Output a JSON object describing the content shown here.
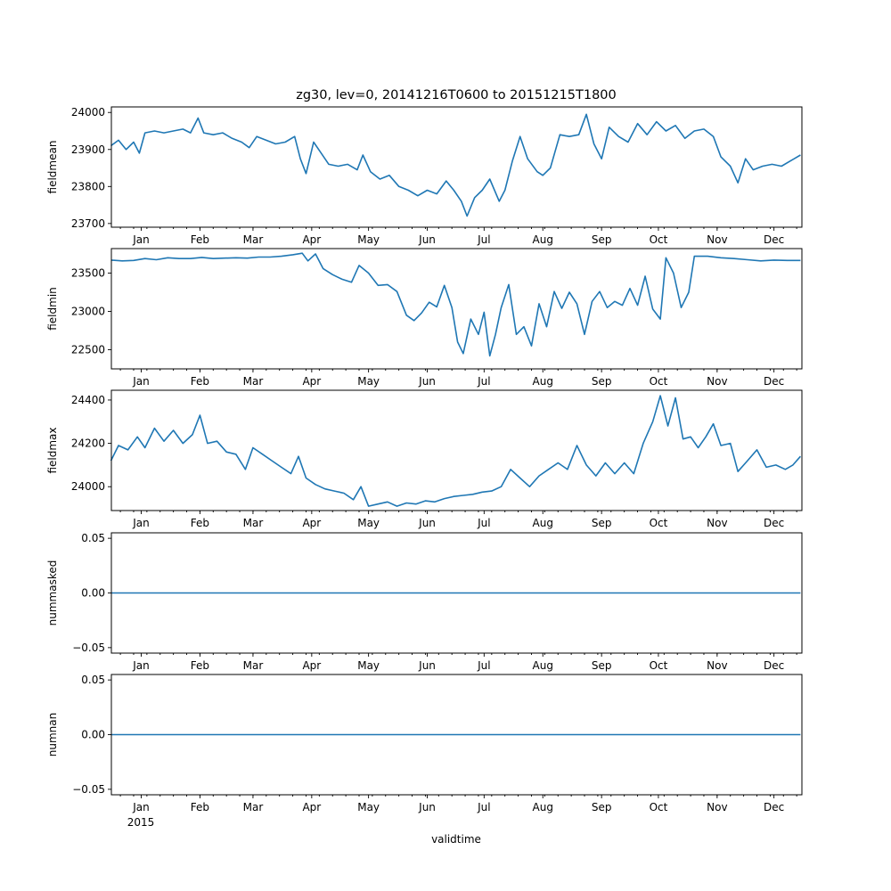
{
  "chart_data": {
    "type": "line",
    "title": "zg30, lev=0, 20141216T0600 to 20151215T1800",
    "xlabel": "validtime",
    "x_range": [
      "2014-12-16T06:00",
      "2015-12-15T18:00"
    ],
    "x_ticks": [
      {
        "date": "2015-01-01",
        "label": "Jan"
      },
      {
        "date": "2015-02-01",
        "label": "Feb"
      },
      {
        "date": "2015-03-01",
        "label": "Mar"
      },
      {
        "date": "2015-04-01",
        "label": "Apr"
      },
      {
        "date": "2015-05-01",
        "label": "May"
      },
      {
        "date": "2015-06-01",
        "label": "Jun"
      },
      {
        "date": "2015-07-01",
        "label": "Jul"
      },
      {
        "date": "2015-08-01",
        "label": "Aug"
      },
      {
        "date": "2015-09-01",
        "label": "Sep"
      },
      {
        "date": "2015-10-01",
        "label": "Oct"
      },
      {
        "date": "2015-11-01",
        "label": "Nov"
      },
      {
        "date": "2015-12-01",
        "label": "Dec"
      }
    ],
    "year_label": "2015",
    "line_color": "#1f77b4",
    "panels": [
      {
        "ylabel": "fieldmean",
        "ylim": [
          23690,
          24015
        ],
        "yticks": [
          23700,
          23800,
          23900,
          24000
        ],
        "ytick_labels": [
          "23700",
          "23800",
          "23900",
          "24000"
        ],
        "points": [
          [
            "2014-12-16",
            23910
          ],
          [
            "2014-12-20",
            23925
          ],
          [
            "2014-12-24",
            23900
          ],
          [
            "2014-12-28",
            23920
          ],
          [
            "2014-12-31",
            23890
          ],
          [
            "2015-01-03",
            23945
          ],
          [
            "2015-01-08",
            23950
          ],
          [
            "2015-01-13",
            23945
          ],
          [
            "2015-01-18",
            23950
          ],
          [
            "2015-01-23",
            23955
          ],
          [
            "2015-01-27",
            23945
          ],
          [
            "2015-01-31",
            23985
          ],
          [
            "2015-02-03",
            23945
          ],
          [
            "2015-02-08",
            23940
          ],
          [
            "2015-02-13",
            23945
          ],
          [
            "2015-02-18",
            23930
          ],
          [
            "2015-02-23",
            23920
          ],
          [
            "2015-02-27",
            23905
          ],
          [
            "2015-03-03",
            23935
          ],
          [
            "2015-03-08",
            23925
          ],
          [
            "2015-03-13",
            23915
          ],
          [
            "2015-03-18",
            23920
          ],
          [
            "2015-03-23",
            23935
          ],
          [
            "2015-03-26",
            23875
          ],
          [
            "2015-03-29",
            23835
          ],
          [
            "2015-04-02",
            23920
          ],
          [
            "2015-04-06",
            23890
          ],
          [
            "2015-04-10",
            23860
          ],
          [
            "2015-04-15",
            23855
          ],
          [
            "2015-04-20",
            23860
          ],
          [
            "2015-04-25",
            23845
          ],
          [
            "2015-04-28",
            23885
          ],
          [
            "2015-05-02",
            23840
          ],
          [
            "2015-05-07",
            23820
          ],
          [
            "2015-05-12",
            23830
          ],
          [
            "2015-05-17",
            23800
          ],
          [
            "2015-05-22",
            23790
          ],
          [
            "2015-05-27",
            23775
          ],
          [
            "2015-06-01",
            23790
          ],
          [
            "2015-06-06",
            23780
          ],
          [
            "2015-06-11",
            23815
          ],
          [
            "2015-06-15",
            23790
          ],
          [
            "2015-06-19",
            23760
          ],
          [
            "2015-06-22",
            23720
          ],
          [
            "2015-06-26",
            23770
          ],
          [
            "2015-06-30",
            23790
          ],
          [
            "2015-07-04",
            23820
          ],
          [
            "2015-07-09",
            23760
          ],
          [
            "2015-07-12",
            23790
          ],
          [
            "2015-07-16",
            23870
          ],
          [
            "2015-07-20",
            23935
          ],
          [
            "2015-07-24",
            23875
          ],
          [
            "2015-07-29",
            23840
          ],
          [
            "2015-08-01",
            23830
          ],
          [
            "2015-08-05",
            23850
          ],
          [
            "2015-08-10",
            23940
          ],
          [
            "2015-08-15",
            23935
          ],
          [
            "2015-08-20",
            23940
          ],
          [
            "2015-08-24",
            23995
          ],
          [
            "2015-08-28",
            23915
          ],
          [
            "2015-09-01",
            23875
          ],
          [
            "2015-09-05",
            23960
          ],
          [
            "2015-09-10",
            23935
          ],
          [
            "2015-09-15",
            23920
          ],
          [
            "2015-09-20",
            23970
          ],
          [
            "2015-09-25",
            23940
          ],
          [
            "2015-09-30",
            23975
          ],
          [
            "2015-10-05",
            23950
          ],
          [
            "2015-10-10",
            23965
          ],
          [
            "2015-10-15",
            23930
          ],
          [
            "2015-10-20",
            23950
          ],
          [
            "2015-10-25",
            23955
          ],
          [
            "2015-10-30",
            23935
          ],
          [
            "2015-11-03",
            23880
          ],
          [
            "2015-11-08",
            23855
          ],
          [
            "2015-11-12",
            23810
          ],
          [
            "2015-11-16",
            23875
          ],
          [
            "2015-11-20",
            23845
          ],
          [
            "2015-11-25",
            23855
          ],
          [
            "2015-11-30",
            23860
          ],
          [
            "2015-12-05",
            23855
          ],
          [
            "2015-12-10",
            23870
          ],
          [
            "2015-12-15",
            23885
          ]
        ]
      },
      {
        "ylabel": "fieldmin",
        "ylim": [
          22250,
          23820
        ],
        "yticks": [
          22500,
          23000,
          23500
        ],
        "ytick_labels": [
          "22500",
          "23000",
          "23500"
        ],
        "points": [
          [
            "2014-12-16",
            23670
          ],
          [
            "2014-12-22",
            23660
          ],
          [
            "2014-12-28",
            23665
          ],
          [
            "2015-01-03",
            23690
          ],
          [
            "2015-01-09",
            23675
          ],
          [
            "2015-01-15",
            23700
          ],
          [
            "2015-01-21",
            23690
          ],
          [
            "2015-01-27",
            23690
          ],
          [
            "2015-02-02",
            23705
          ],
          [
            "2015-02-08",
            23690
          ],
          [
            "2015-02-14",
            23695
          ],
          [
            "2015-02-20",
            23700
          ],
          [
            "2015-02-26",
            23695
          ],
          [
            "2015-03-04",
            23710
          ],
          [
            "2015-03-10",
            23710
          ],
          [
            "2015-03-16",
            23720
          ],
          [
            "2015-03-22",
            23740
          ],
          [
            "2015-03-27",
            23760
          ],
          [
            "2015-03-30",
            23660
          ],
          [
            "2015-04-03",
            23750
          ],
          [
            "2015-04-07",
            23560
          ],
          [
            "2015-04-12",
            23480
          ],
          [
            "2015-04-17",
            23420
          ],
          [
            "2015-04-22",
            23380
          ],
          [
            "2015-04-26",
            23600
          ],
          [
            "2015-05-01",
            23500
          ],
          [
            "2015-05-06",
            23340
          ],
          [
            "2015-05-11",
            23350
          ],
          [
            "2015-05-16",
            23260
          ],
          [
            "2015-05-21",
            22950
          ],
          [
            "2015-05-25",
            22880
          ],
          [
            "2015-05-29",
            22980
          ],
          [
            "2015-06-02",
            23120
          ],
          [
            "2015-06-06",
            23060
          ],
          [
            "2015-06-10",
            23340
          ],
          [
            "2015-06-14",
            23050
          ],
          [
            "2015-06-17",
            22600
          ],
          [
            "2015-06-20",
            22450
          ],
          [
            "2015-06-24",
            22900
          ],
          [
            "2015-06-28",
            22700
          ],
          [
            "2015-07-01",
            22990
          ],
          [
            "2015-07-04",
            22420
          ],
          [
            "2015-07-07",
            22700
          ],
          [
            "2015-07-10",
            23050
          ],
          [
            "2015-07-14",
            23350
          ],
          [
            "2015-07-18",
            22700
          ],
          [
            "2015-07-22",
            22800
          ],
          [
            "2015-07-26",
            22550
          ],
          [
            "2015-07-30",
            23100
          ],
          [
            "2015-08-03",
            22800
          ],
          [
            "2015-08-07",
            23260
          ],
          [
            "2015-08-11",
            23040
          ],
          [
            "2015-08-15",
            23250
          ],
          [
            "2015-08-19",
            23100
          ],
          [
            "2015-08-23",
            22700
          ],
          [
            "2015-08-27",
            23130
          ],
          [
            "2015-08-31",
            23260
          ],
          [
            "2015-09-04",
            23050
          ],
          [
            "2015-09-08",
            23130
          ],
          [
            "2015-09-12",
            23080
          ],
          [
            "2015-09-16",
            23300
          ],
          [
            "2015-09-20",
            23080
          ],
          [
            "2015-09-24",
            23460
          ],
          [
            "2015-09-28",
            23030
          ],
          [
            "2015-10-02",
            22900
          ],
          [
            "2015-10-05",
            23700
          ],
          [
            "2015-10-09",
            23500
          ],
          [
            "2015-10-13",
            23050
          ],
          [
            "2015-10-17",
            23250
          ],
          [
            "2015-10-20",
            23720
          ],
          [
            "2015-10-27",
            23720
          ],
          [
            "2015-11-03",
            23700
          ],
          [
            "2015-11-10",
            23690
          ],
          [
            "2015-11-17",
            23675
          ],
          [
            "2015-11-24",
            23660
          ],
          [
            "2015-12-01",
            23670
          ],
          [
            "2015-12-08",
            23665
          ],
          [
            "2015-12-15",
            23665
          ]
        ]
      },
      {
        "ylabel": "fieldmax",
        "ylim": [
          23890,
          24445
        ],
        "yticks": [
          24000,
          24200,
          24400
        ],
        "ytick_labels": [
          "24000",
          "24200",
          "24400"
        ],
        "points": [
          [
            "2014-12-16",
            24120
          ],
          [
            "2014-12-20",
            24190
          ],
          [
            "2014-12-25",
            24170
          ],
          [
            "2014-12-30",
            24230
          ],
          [
            "2015-01-03",
            24180
          ],
          [
            "2015-01-08",
            24270
          ],
          [
            "2015-01-13",
            24210
          ],
          [
            "2015-01-18",
            24260
          ],
          [
            "2015-01-23",
            24200
          ],
          [
            "2015-01-28",
            24240
          ],
          [
            "2015-02-01",
            24330
          ],
          [
            "2015-02-05",
            24200
          ],
          [
            "2015-02-10",
            24210
          ],
          [
            "2015-02-15",
            24160
          ],
          [
            "2015-02-20",
            24150
          ],
          [
            "2015-02-25",
            24080
          ],
          [
            "2015-03-01",
            24180
          ],
          [
            "2015-03-06",
            24150
          ],
          [
            "2015-03-11",
            24120
          ],
          [
            "2015-03-16",
            24090
          ],
          [
            "2015-03-21",
            24060
          ],
          [
            "2015-03-25",
            24140
          ],
          [
            "2015-03-29",
            24040
          ],
          [
            "2015-04-03",
            24010
          ],
          [
            "2015-04-08",
            23990
          ],
          [
            "2015-04-13",
            23980
          ],
          [
            "2015-04-18",
            23970
          ],
          [
            "2015-04-23",
            23940
          ],
          [
            "2015-04-27",
            24000
          ],
          [
            "2015-05-01",
            23910
          ],
          [
            "2015-05-06",
            23920
          ],
          [
            "2015-05-11",
            23930
          ],
          [
            "2015-05-16",
            23910
          ],
          [
            "2015-05-21",
            23925
          ],
          [
            "2015-05-26",
            23920
          ],
          [
            "2015-05-31",
            23935
          ],
          [
            "2015-06-05",
            23930
          ],
          [
            "2015-06-10",
            23945
          ],
          [
            "2015-06-15",
            23955
          ],
          [
            "2015-06-20",
            23960
          ],
          [
            "2015-06-25",
            23965
          ],
          [
            "2015-06-30",
            23975
          ],
          [
            "2015-07-05",
            23980
          ],
          [
            "2015-07-10",
            24000
          ],
          [
            "2015-07-15",
            24080
          ],
          [
            "2015-07-20",
            24040
          ],
          [
            "2015-07-25",
            24000
          ],
          [
            "2015-07-30",
            24050
          ],
          [
            "2015-08-04",
            24080
          ],
          [
            "2015-08-09",
            24110
          ],
          [
            "2015-08-14",
            24080
          ],
          [
            "2015-08-19",
            24190
          ],
          [
            "2015-08-24",
            24100
          ],
          [
            "2015-08-29",
            24050
          ],
          [
            "2015-09-03",
            24110
          ],
          [
            "2015-09-08",
            24060
          ],
          [
            "2015-09-13",
            24110
          ],
          [
            "2015-09-18",
            24060
          ],
          [
            "2015-09-23",
            24200
          ],
          [
            "2015-09-28",
            24300
          ],
          [
            "2015-10-02",
            24420
          ],
          [
            "2015-10-06",
            24280
          ],
          [
            "2015-10-10",
            24410
          ],
          [
            "2015-10-14",
            24220
          ],
          [
            "2015-10-18",
            24230
          ],
          [
            "2015-10-22",
            24180
          ],
          [
            "2015-10-26",
            24230
          ],
          [
            "2015-10-30",
            24290
          ],
          [
            "2015-11-03",
            24190
          ],
          [
            "2015-11-08",
            24200
          ],
          [
            "2015-11-12",
            24070
          ],
          [
            "2015-11-17",
            24120
          ],
          [
            "2015-11-22",
            24170
          ],
          [
            "2015-11-27",
            24090
          ],
          [
            "2015-12-02",
            24100
          ],
          [
            "2015-12-07",
            24080
          ],
          [
            "2015-12-11",
            24100
          ],
          [
            "2015-12-15",
            24140
          ]
        ]
      },
      {
        "ylabel": "nummasked",
        "ylim": [
          -0.055,
          0.055
        ],
        "yticks": [
          -0.05,
          0.0,
          0.05
        ],
        "ytick_labels": [
          "−0.05",
          "0.00",
          "0.05"
        ],
        "points": [
          [
            "2014-12-16",
            0.0
          ],
          [
            "2015-12-15",
            0.0
          ]
        ]
      },
      {
        "ylabel": "numnan",
        "ylim": [
          -0.055,
          0.055
        ],
        "yticks": [
          -0.05,
          0.0,
          0.05
        ],
        "ytick_labels": [
          "−0.05",
          "0.00",
          "0.05"
        ],
        "points": [
          [
            "2014-12-16",
            0.0
          ],
          [
            "2015-12-15",
            0.0
          ]
        ]
      }
    ]
  }
}
